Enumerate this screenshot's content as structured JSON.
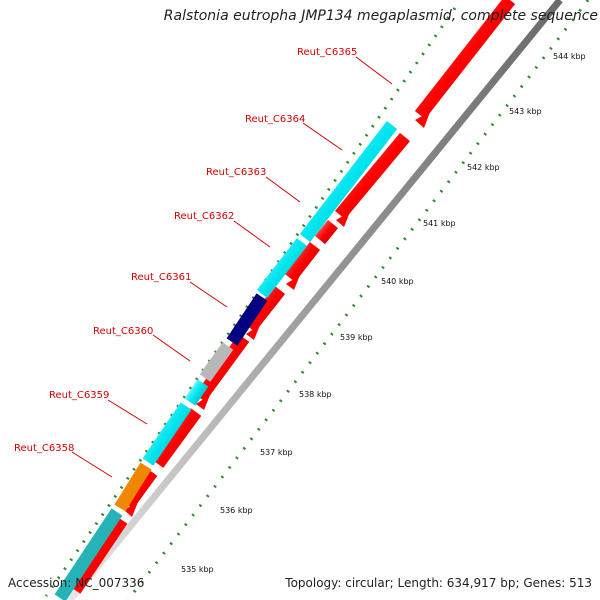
{
  "title": "Ralstonia eutropha JMP134 megaplasmid, complete sequence",
  "footer": {
    "accession": "Accession: NC_007336",
    "summary": "Topology: circular; Length: 634,917 bp; Genes: 513"
  },
  "colors": {
    "forward_cds": "#ff0000",
    "cyan_cds": "#00e5ee",
    "navy_cds": "#000080",
    "orange_cds": "#ee8800",
    "gray_cds": "#b8b8b8",
    "teal_cds": "#26b3b8",
    "gene_label": "#d40000",
    "backbone": "#999999",
    "tick_mark": "#2e8b2e"
  },
  "genes": [
    {
      "label": "Reut_C6365"
    },
    {
      "label": "Reut_C6364"
    },
    {
      "label": "Reut_C6363"
    },
    {
      "label": "Reut_C6362"
    },
    {
      "label": "Reut_C6361"
    },
    {
      "label": "Reut_C6360"
    },
    {
      "label": "Reut_C6359"
    },
    {
      "label": "Reut_C6358"
    }
  ],
  "ruler": [
    {
      "label": "544 kbp"
    },
    {
      "label": "543 kbp"
    },
    {
      "label": "542 kbp"
    },
    {
      "label": "541 kbp"
    },
    {
      "label": "540 kbp"
    },
    {
      "label": "539 kbp"
    },
    {
      "label": "538 kbp"
    },
    {
      "label": "537 kbp"
    },
    {
      "label": "536 kbp"
    },
    {
      "label": "535 kbp"
    }
  ]
}
